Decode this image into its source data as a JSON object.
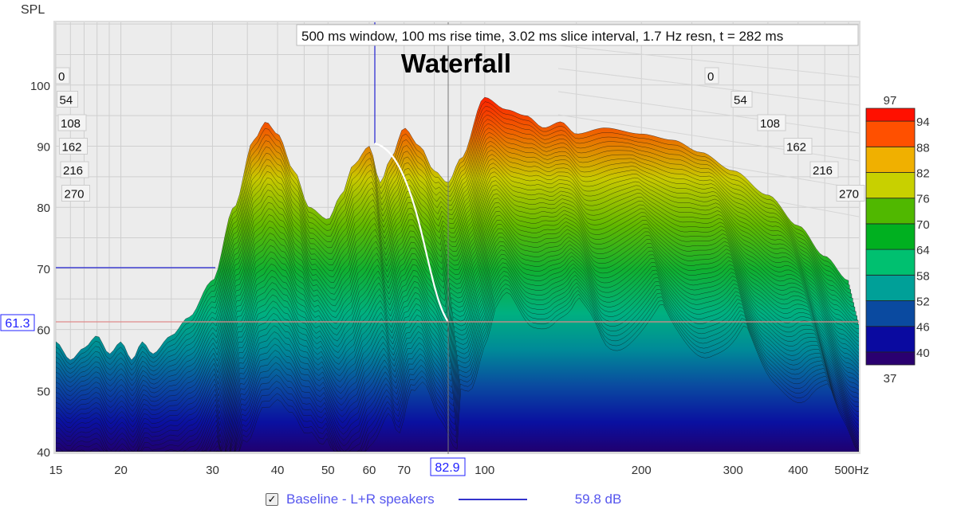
{
  "chart_data": {
    "type": "area",
    "variant": "waterfall",
    "title": "Waterfall",
    "subtitle": "500 ms window, 100 ms rise time, 3.02 ms slice interval, 1.7 Hz resn, t = 282 ms",
    "ylabel": "SPL",
    "xunit": "Hz",
    "xscale": "log",
    "xlim": [
      15,
      500
    ],
    "ylim": [
      40,
      110
    ],
    "xticks": [
      15,
      20,
      30,
      40,
      50,
      60,
      70,
      100,
      200,
      300,
      400,
      500
    ],
    "xtick_labels": [
      "15",
      "20",
      "30",
      "40",
      "50",
      "60",
      "70",
      "100",
      "200",
      "300",
      "400",
      "500Hz"
    ],
    "yticks": [
      40,
      50,
      60,
      70,
      80,
      90,
      100
    ],
    "time_labels_ms": [
      "0",
      "54",
      "108",
      "162",
      "216",
      "270"
    ],
    "grid": true,
    "front_slice": {
      "freq_hz": [
        15,
        16,
        17,
        18,
        19,
        20,
        21,
        22,
        23,
        25,
        27,
        30,
        33,
        36,
        38,
        40,
        43,
        46,
        50,
        53,
        56,
        60,
        63,
        66,
        70,
        75,
        80,
        85,
        90,
        100,
        110,
        120,
        130,
        140,
        150,
        170,
        200,
        230,
        260,
        300,
        350,
        400,
        450,
        500
      ],
      "spl_db": [
        58,
        55,
        57,
        59,
        56,
        58,
        55,
        58,
        56,
        59,
        62,
        68,
        80,
        91,
        94,
        92,
        86,
        80,
        78,
        82,
        87,
        90,
        84,
        88,
        93,
        90,
        86,
        84,
        88,
        98,
        96,
        95,
        93,
        94,
        92,
        93,
        92,
        91,
        89,
        86,
        82,
        77,
        72,
        68
      ]
    },
    "cursor": {
      "freq_label": "82.9",
      "spl_label": "61.3"
    },
    "colorscale": {
      "min_label": "37",
      "max_label": "97",
      "tick_labels": [
        "94",
        "88",
        "82",
        "76",
        "70",
        "64",
        "58",
        "52",
        "46",
        "40"
      ],
      "colors": [
        "#2a0070",
        "#0a0aa0",
        "#0a4aa0",
        "#00a098",
        "#00c070",
        "#00b020",
        "#50b800",
        "#c8d000",
        "#f0b000",
        "#ff5000",
        "#ff1000"
      ]
    },
    "legend": {
      "checked": true,
      "name": "Baseline - L+R speakers",
      "value": "59.8 dB",
      "color": "#3333cc"
    }
  }
}
